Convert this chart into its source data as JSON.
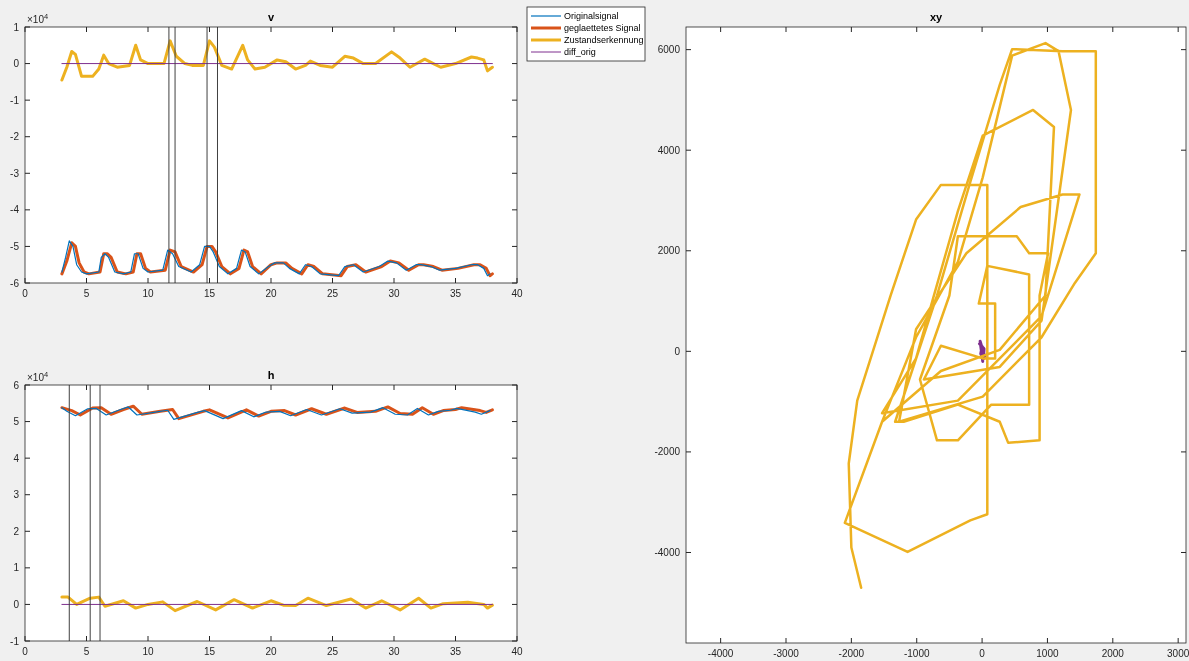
{
  "chart_data": [
    {
      "type": "line",
      "title": "v",
      "xlim": [
        0,
        40
      ],
      "xticks": [
        0,
        5,
        10,
        15,
        20,
        25,
        30,
        35,
        40
      ],
      "ylim": [
        -6,
        1
      ],
      "yticks": [
        -6,
        -5,
        -4,
        -3,
        -2,
        -1,
        0,
        1
      ],
      "grid": false,
      "legend": "right",
      "annotations": [
        "×10$^{4}$"
      ],
      "ref_lines": [
        {
          "axis": "x",
          "value": 11.7,
          "color": "#404040"
        },
        {
          "axis": "x",
          "value": 12.2,
          "color": "#404040"
        },
        {
          "axis": "x",
          "value": 14.8,
          "color": "#404040"
        },
        {
          "axis": "x",
          "value": 15.65,
          "color": "#404040"
        }
      ],
      "series": [
        {
          "name": "Originalsignal",
          "color": "#0072bd",
          "x": [
            3,
            3.3,
            3.6,
            3.9,
            4.2,
            4.6,
            5,
            6,
            6.2,
            6.5,
            6.8,
            7.3,
            8,
            8.6,
            8.9,
            9.2,
            9.6,
            10,
            11.2,
            11.6,
            12,
            12.5,
            13.5,
            14.2,
            14.6,
            15,
            15.3,
            15.8,
            16.5,
            17.2,
            17.6,
            17.9,
            18.3,
            19,
            19.8,
            20.3,
            21,
            21.5,
            22.3,
            22.8,
            23.3,
            24,
            25.5,
            26,
            26.7,
            27.5,
            28.8,
            29.5,
            30.2,
            31,
            31.8,
            32.2,
            33,
            33.7,
            35,
            36.3,
            36.8,
            37.3,
            37.6,
            37.8
          ],
          "values": [
            -5.7,
            -5.3,
            -4.85,
            -5.0,
            -5.5,
            -5.7,
            -5.75,
            -5.7,
            -5.3,
            -5.2,
            -5.3,
            -5.7,
            -5.75,
            -5.7,
            -5.2,
            -5.2,
            -5.6,
            -5.7,
            -5.65,
            -5.1,
            -5.2,
            -5.55,
            -5.7,
            -5.5,
            -5.0,
            -5.0,
            -5.15,
            -5.55,
            -5.75,
            -5.6,
            -5.1,
            -5.15,
            -5.55,
            -5.75,
            -5.55,
            -5.45,
            -5.45,
            -5.6,
            -5.75,
            -5.5,
            -5.55,
            -5.75,
            -5.8,
            -5.55,
            -5.5,
            -5.7,
            -5.55,
            -5.4,
            -5.45,
            -5.65,
            -5.5,
            -5.5,
            -5.55,
            -5.65,
            -5.6,
            -5.5,
            -5.5,
            -5.6,
            -5.8,
            -5.75
          ]
        },
        {
          "name": "geglaettetes Signal",
          "color": "#d95319",
          "x": [
            3,
            3.4,
            3.8,
            4.1,
            4.4,
            4.8,
            5.2,
            6.1,
            6.4,
            6.7,
            7,
            7.5,
            8.2,
            8.8,
            9.1,
            9.4,
            9.8,
            10.2,
            11.4,
            11.8,
            12.2,
            12.7,
            13.7,
            14.4,
            14.8,
            15.2,
            15.5,
            16,
            16.7,
            17.4,
            17.8,
            18.1,
            18.5,
            19.2,
            20,
            20.5,
            21.2,
            21.7,
            22.5,
            23,
            23.5,
            24.2,
            25.7,
            26.2,
            26.9,
            27.7,
            29,
            29.7,
            30.4,
            31.2,
            32,
            32.4,
            33.2,
            33.9,
            35.2,
            36.5,
            37,
            37.5,
            37.8,
            38
          ],
          "values": [
            -5.75,
            -5.4,
            -4.9,
            -5.0,
            -5.45,
            -5.7,
            -5.75,
            -5.7,
            -5.2,
            -5.2,
            -5.3,
            -5.7,
            -5.75,
            -5.7,
            -5.2,
            -5.2,
            -5.6,
            -5.7,
            -5.65,
            -5.1,
            -5.15,
            -5.55,
            -5.7,
            -5.5,
            -5.0,
            -5.0,
            -5.15,
            -5.55,
            -5.75,
            -5.6,
            -5.1,
            -5.15,
            -5.55,
            -5.75,
            -5.5,
            -5.45,
            -5.45,
            -5.6,
            -5.75,
            -5.5,
            -5.55,
            -5.75,
            -5.8,
            -5.55,
            -5.5,
            -5.7,
            -5.55,
            -5.4,
            -5.45,
            -5.65,
            -5.5,
            -5.5,
            -5.55,
            -5.65,
            -5.6,
            -5.5,
            -5.5,
            -5.6,
            -5.8,
            -5.75
          ]
        },
        {
          "name": "Zustandserkennung",
          "color": "#edb120",
          "x": [
            3,
            3.4,
            3.8,
            4.1,
            4.6,
            5.5,
            6,
            6.4,
            6.8,
            7.5,
            8.5,
            9,
            9.4,
            10,
            11.3,
            11.8,
            12.3,
            13,
            13.6,
            14.5,
            15,
            15.4,
            16,
            16.8,
            17.7,
            18.1,
            18.7,
            19.5,
            20.5,
            21.2,
            22,
            22.8,
            23.2,
            24,
            25,
            26,
            26.7,
            27.5,
            28.5,
            29.8,
            30.5,
            31.3,
            32.5,
            33.2,
            33.8,
            35,
            36.3,
            36.8,
            37.3,
            37.6,
            37.8,
            38
          ],
          "values": [
            -0.45,
            -0.1,
            0.33,
            0.25,
            -0.35,
            -0.35,
            -0.15,
            0.23,
            0.0,
            -0.1,
            -0.05,
            0.5,
            0.1,
            0.0,
            0.0,
            0.62,
            0.2,
            0.0,
            -0.05,
            -0.05,
            0.62,
            0.45,
            -0.05,
            -0.15,
            0.5,
            0.1,
            -0.15,
            -0.1,
            0.1,
            0.05,
            -0.15,
            -0.05,
            0.07,
            -0.05,
            -0.1,
            0.2,
            0.15,
            0.0,
            0.0,
            0.32,
            0.15,
            -0.1,
            0.12,
            0.0,
            -0.1,
            0.0,
            0.18,
            0.15,
            0.1,
            -0.2,
            -0.15,
            -0.1
          ]
        },
        {
          "name": "diff_orig",
          "color": "#7e2f8e",
          "x": [
            3,
            38
          ],
          "values": [
            0,
            0
          ]
        }
      ]
    },
    {
      "type": "line",
      "title": "h",
      "xlim": [
        0,
        40
      ],
      "xticks": [
        0,
        5,
        10,
        15,
        20,
        25,
        30,
        35,
        40
      ],
      "ylim": [
        -1,
        6
      ],
      "yticks": [
        -1,
        0,
        1,
        2,
        3,
        4,
        5,
        6
      ],
      "grid": false,
      "annotations": [
        "×10$^{4}$"
      ],
      "ref_lines": [
        {
          "axis": "x",
          "value": 3.6,
          "color": "#404040"
        },
        {
          "axis": "x",
          "value": 5.3,
          "color": "#404040"
        },
        {
          "axis": "x",
          "value": 6.1,
          "color": "#404040"
        }
      ],
      "series": [
        {
          "color": "#0072bd",
          "x": [
            3,
            3.4,
            4.1,
            5.1,
            5.8,
            6.6,
            7.6,
            8.4,
            9.1,
            10.6,
            11.6,
            12.1,
            14.1,
            14.6,
            16.1,
            17.6,
            18.6,
            19.6,
            20.7,
            21.6,
            22.9,
            24.1,
            25.6,
            26.6,
            28.1,
            29.1,
            30.1,
            31.1,
            31.9,
            32.8,
            33.6,
            34.6,
            35.1,
            36.6,
            37.1,
            37.8
          ],
          "values": [
            5.38,
            5.28,
            5.16,
            5.35,
            5.36,
            5.18,
            5.31,
            5.4,
            5.18,
            5.26,
            5.31,
            5.06,
            5.26,
            5.3,
            5.08,
            5.3,
            5.13,
            5.26,
            5.28,
            5.16,
            5.33,
            5.18,
            5.35,
            5.23,
            5.26,
            5.38,
            5.2,
            5.18,
            5.36,
            5.18,
            5.28,
            5.31,
            5.36,
            5.26,
            5.2,
            5.3
          ]
        },
        {
          "color": "#d95319",
          "x": [
            3,
            3.8,
            4.5,
            5.5,
            6.2,
            7,
            8,
            8.8,
            9.5,
            11,
            12,
            12.5,
            14.5,
            15,
            16.5,
            18,
            19,
            20,
            21.1,
            22,
            23.3,
            24.5,
            26,
            27,
            28.5,
            29.5,
            30.5,
            31.5,
            32.3,
            33.2,
            34,
            35,
            35.5,
            37,
            37.5,
            38
          ],
          "values": [
            5.38,
            5.3,
            5.18,
            5.37,
            5.38,
            5.2,
            5.33,
            5.42,
            5.2,
            5.28,
            5.33,
            5.08,
            5.28,
            5.32,
            5.1,
            5.32,
            5.15,
            5.28,
            5.3,
            5.18,
            5.35,
            5.2,
            5.37,
            5.25,
            5.28,
            5.4,
            5.22,
            5.2,
            5.38,
            5.2,
            5.3,
            5.33,
            5.38,
            5.3,
            5.25,
            5.32
          ]
        },
        {
          "color": "#edb120",
          "x": [
            3,
            3.5,
            4.2,
            5.3,
            6,
            6.5,
            8,
            9,
            10,
            11.2,
            12.2,
            14,
            15.5,
            17,
            18.5,
            20,
            21,
            22,
            23,
            24.5,
            26.5,
            27.7,
            29,
            30.5,
            32,
            33,
            34,
            36,
            37.3,
            37.6,
            38
          ],
          "values": [
            0.2,
            0.2,
            0.0,
            0.17,
            0.2,
            -0.05,
            0.1,
            -0.1,
            0.0,
            0.07,
            -0.17,
            0.08,
            -0.15,
            0.13,
            -0.1,
            0.1,
            -0.02,
            -0.03,
            0.17,
            -0.03,
            0.15,
            -0.1,
            0.1,
            -0.15,
            0.17,
            -0.1,
            0.02,
            0.06,
            0.0,
            -0.1,
            -0.02
          ]
        },
        {
          "color": "#7e2f8e",
          "x": [
            3,
            38
          ],
          "values": [
            0,
            0
          ]
        }
      ]
    },
    {
      "type": "line",
      "title": "xy",
      "xlim": [
        -4530,
        3120
      ],
      "xticks": [
        -4000,
        -3000,
        -2000,
        -1000,
        0,
        1000,
        2000,
        3000
      ],
      "ylim": [
        -5800,
        6450
      ],
      "yticks": [
        -4000,
        -2000,
        0,
        2000,
        4000,
        6000
      ],
      "grid": false,
      "series": [
        {
          "color": "#edb120",
          "x": [
            -1850,
            -2000,
            -2040,
            -1910,
            -1400,
            -1010,
            -630,
            80,
            80,
            -180,
            -1140,
            -2100,
            -1530,
            -630,
            270,
            970,
            1100,
            780,
            10,
            -370,
            -1010,
            -1530,
            -370,
            910,
            1490,
            1230,
            590,
            -240,
            -1010,
            -1270,
            10,
            910,
            1420,
            1740,
            1740,
            1230,
            460,
            270,
            -180,
            -690,
            -1330,
            -1200,
            -370,
            270,
            400,
            880,
            880,
            1010,
            720,
            530,
            -370,
            -500,
            -950,
            -690,
            -370,
            140,
            720,
            720,
            80,
            -50,
            200,
            200,
            10,
            -630,
            -890,
            270,
            910,
            1360,
            1170,
            970,
            460,
            10,
            -370,
            -1010,
            -1400,
            -1530
          ],
          "values": [
            -4700,
            -3900,
            -2230,
            -980,
            1110,
            2620,
            3310,
            3310,
            -3240,
            -3360,
            -3990,
            -3410,
            -1400,
            -390,
            30,
            1110,
            4460,
            4800,
            4290,
            2790,
            -140,
            -1230,
            -980,
            700,
            3120,
            3120,
            2870,
            1950,
            440,
            -1400,
            -900,
            280,
            1360,
            1950,
            5970,
            5970,
            6010,
            5300,
            3370,
            1110,
            -1400,
            -1400,
            -1060,
            -1400,
            -1820,
            -1770,
            1110,
            1950,
            1950,
            2290,
            2290,
            1110,
            -560,
            -1770,
            -1770,
            -1060,
            -1060,
            1530,
            1700,
            950,
            950,
            -140,
            -140,
            110,
            -560,
            -310,
            610,
            4800,
            5970,
            6130,
            5880,
            3460,
            1780,
            280,
            -980,
            -1400
          ]
        },
        {
          "color": "#7e2f8e",
          "x": [
            -40,
            30,
            20,
            -20,
            0,
            10,
            -30,
            40
          ],
          "values": [
            150,
            50,
            -150,
            -50,
            100,
            -200,
            200,
            -100
          ]
        }
      ]
    }
  ]
}
